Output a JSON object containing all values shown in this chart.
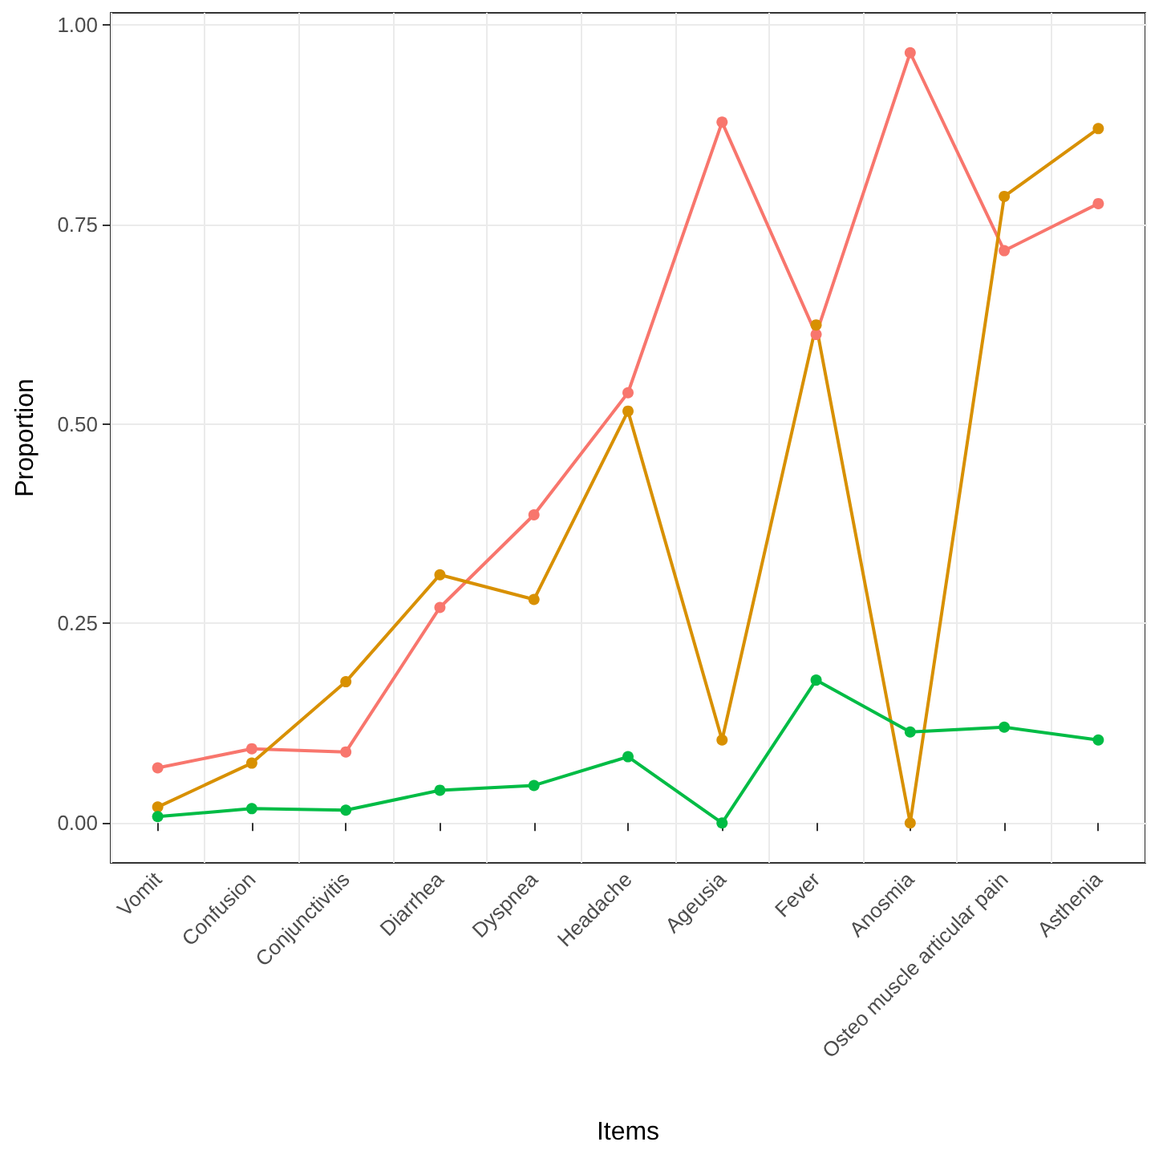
{
  "chart_data": {
    "type": "line",
    "xlabel": "Items",
    "ylabel": "Proportion",
    "categories": [
      "Vomit",
      "Confusion",
      "Conjunctivitis",
      "Diarrhea",
      "Dyspnea",
      "Headache",
      "Ageusia",
      "Fever",
      "Anosmia",
      "Osteo muscle articular pain",
      "Asthenia"
    ],
    "series": [
      {
        "color": "#f8766d",
        "values": [
          0.069,
          0.093,
          0.089,
          0.27,
          0.386,
          0.539,
          0.878,
          0.612,
          0.965,
          0.717,
          0.776
        ]
      },
      {
        "color": "#d89000",
        "values": [
          0.02,
          0.075,
          0.177,
          0.311,
          0.28,
          0.516,
          0.104,
          0.624,
          0.0,
          0.785,
          0.87
        ]
      },
      {
        "color": "#00bc45",
        "values": [
          0.008,
          0.018,
          0.016,
          0.041,
          0.047,
          0.083,
          0.0,
          0.179,
          0.114,
          0.12,
          0.104
        ]
      }
    ],
    "ylim": [
      -0.05,
      1.015
    ],
    "yticks": [
      {
        "value": 0,
        "label": "0.00"
      },
      {
        "value": 0.25,
        "label": "0.25"
      },
      {
        "value": 0.5,
        "label": "0.50"
      },
      {
        "value": 0.75,
        "label": "0.75"
      },
      {
        "value": 1,
        "label": "1.00"
      }
    ],
    "grid": true,
    "marker": "circle",
    "line_style": "solid"
  }
}
